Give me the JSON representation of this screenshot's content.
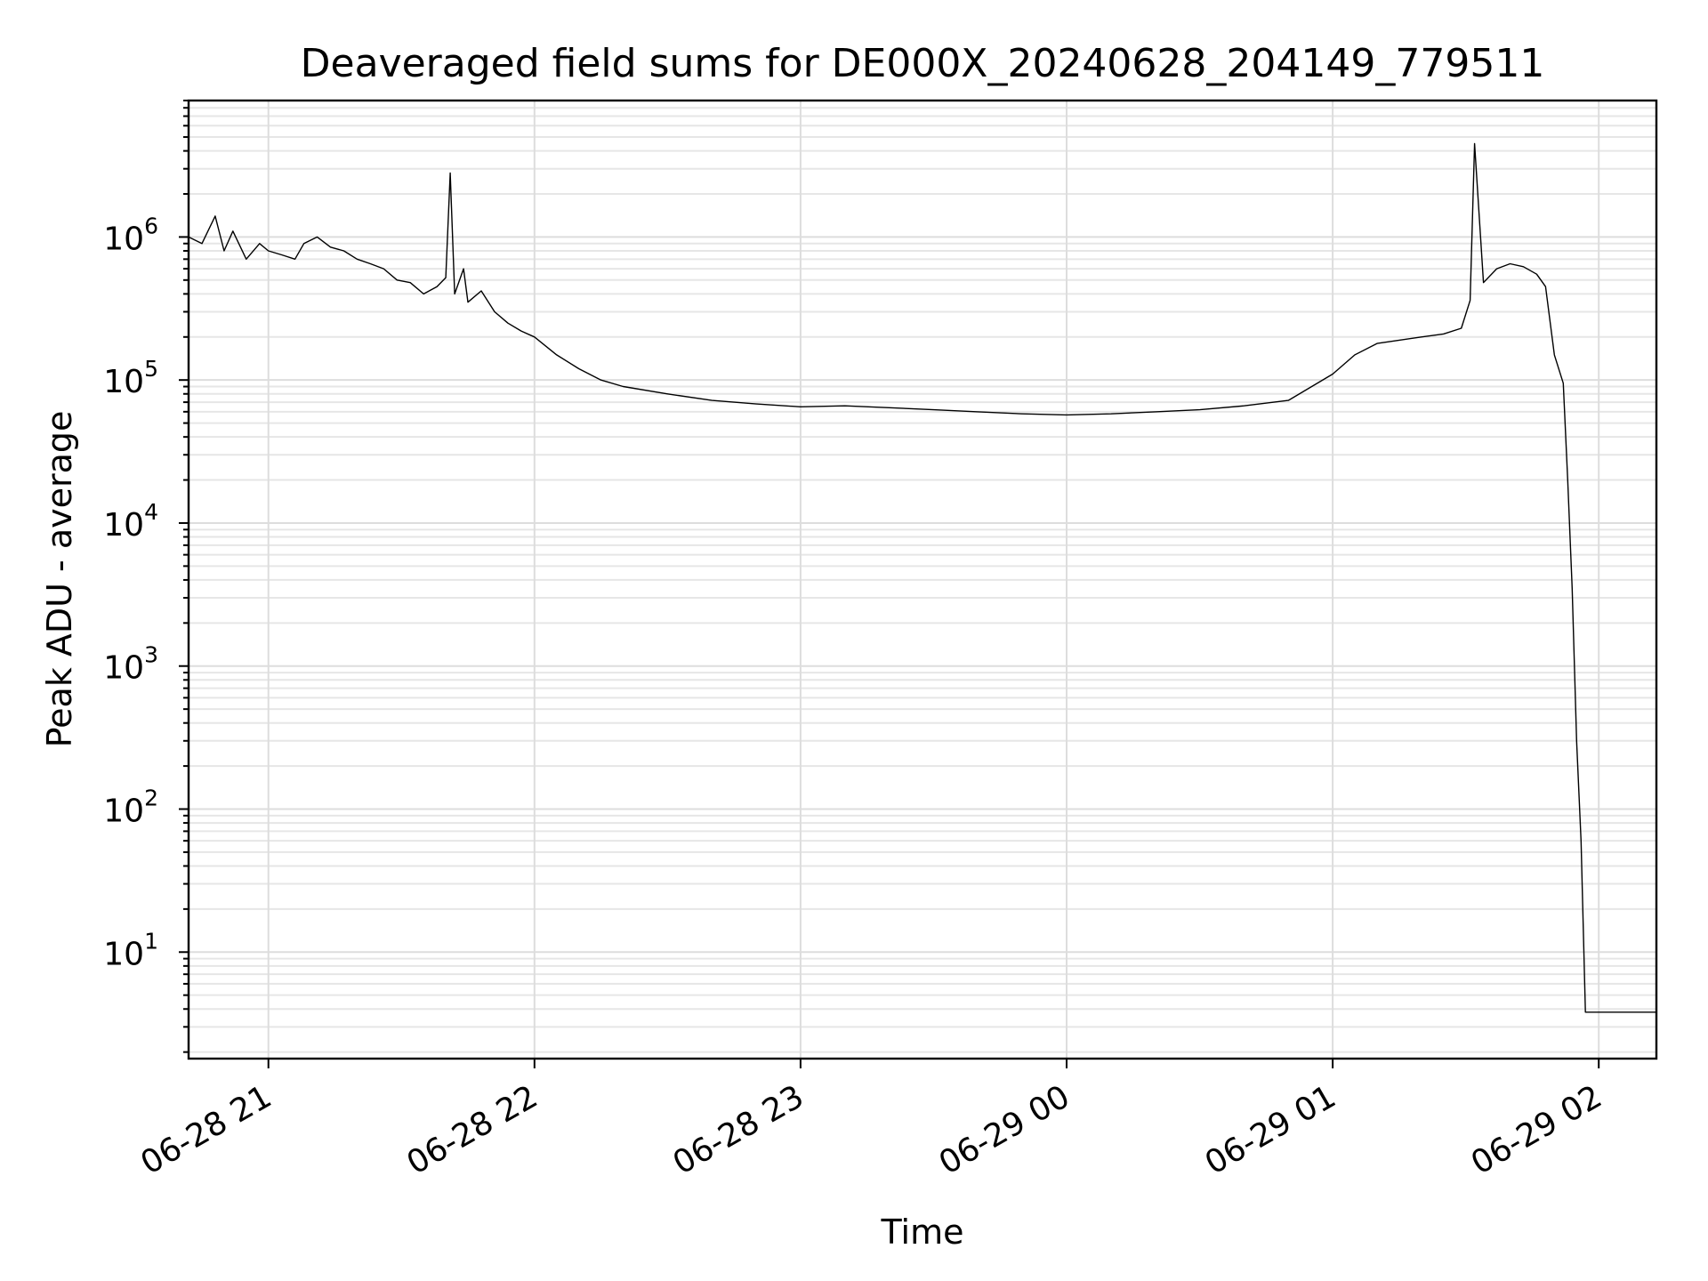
{
  "chart_data": {
    "type": "line",
    "title": "Deaveraged field sums for DE000X_20240628_204149_779511",
    "xlabel": "Time",
    "ylabel": "Peak ADU - average",
    "y_scale": "log",
    "ylim": [
      1.8,
      9000000
    ],
    "xlim": [
      "2024-06-28 20:42",
      "2024-06-29 02:13"
    ],
    "grid": true,
    "legend": "none",
    "line_color": "#000000",
    "x_ticks": [
      {
        "value": "2024-06-28 21:00",
        "label": "06-28 21"
      },
      {
        "value": "2024-06-28 22:00",
        "label": "06-28 22"
      },
      {
        "value": "2024-06-28 23:00",
        "label": "06-28 23"
      },
      {
        "value": "2024-06-29 00:00",
        "label": "06-29 00"
      },
      {
        "value": "2024-06-29 01:00",
        "label": "06-29 01"
      },
      {
        "value": "2024-06-29 02:00",
        "label": "06-29 02"
      }
    ],
    "y_ticks": [
      {
        "value": 10,
        "base": "10",
        "exp": "1"
      },
      {
        "value": 100,
        "base": "10",
        "exp": "2"
      },
      {
        "value": 1000,
        "base": "10",
        "exp": "3"
      },
      {
        "value": 10000,
        "base": "10",
        "exp": "4"
      },
      {
        "value": 100000,
        "base": "10",
        "exp": "5"
      },
      {
        "value": 1000000,
        "base": "10",
        "exp": "6"
      }
    ],
    "series": [
      {
        "x": [
          "2024-06-28 20:42",
          "2024-06-28 20:45",
          "2024-06-28 20:48",
          "2024-06-28 20:50",
          "2024-06-28 20:52",
          "2024-06-28 20:55",
          "2024-06-28 20:58",
          "2024-06-28 21:00",
          "2024-06-28 21:03",
          "2024-06-28 21:06",
          "2024-06-28 21:08",
          "2024-06-28 21:11",
          "2024-06-28 21:14",
          "2024-06-28 21:17",
          "2024-06-28 21:20",
          "2024-06-28 21:23",
          "2024-06-28 21:26",
          "2024-06-28 21:29",
          "2024-06-28 21:32",
          "2024-06-28 21:35",
          "2024-06-28 21:38",
          "2024-06-28 21:40",
          "2024-06-28 21:41",
          "2024-06-28 21:42",
          "2024-06-28 21:44",
          "2024-06-28 21:45",
          "2024-06-28 21:48",
          "2024-06-28 21:51",
          "2024-06-28 21:54",
          "2024-06-28 21:57",
          "2024-06-28 22:00",
          "2024-06-28 22:05",
          "2024-06-28 22:10",
          "2024-06-28 22:15",
          "2024-06-28 22:20",
          "2024-06-28 22:30",
          "2024-06-28 22:40",
          "2024-06-28 22:50",
          "2024-06-28 23:00",
          "2024-06-28 23:10",
          "2024-06-28 23:20",
          "2024-06-28 23:30",
          "2024-06-28 23:40",
          "2024-06-28 23:50",
          "2024-06-29 00:00",
          "2024-06-29 00:10",
          "2024-06-29 00:20",
          "2024-06-29 00:30",
          "2024-06-29 00:40",
          "2024-06-29 00:50",
          "2024-06-29 01:00",
          "2024-06-29 01:05",
          "2024-06-29 01:10",
          "2024-06-29 01:15",
          "2024-06-29 01:20",
          "2024-06-29 01:25",
          "2024-06-29 01:29",
          "2024-06-29 01:31",
          "2024-06-29 01:32",
          "2024-06-29 01:34",
          "2024-06-29 01:37",
          "2024-06-29 01:40",
          "2024-06-29 01:43",
          "2024-06-29 01:46",
          "2024-06-29 01:48",
          "2024-06-29 01:50",
          "2024-06-29 01:52",
          "2024-06-29 01:53",
          "2024-06-29 01:54",
          "2024-06-29 01:55",
          "2024-06-29 01:56",
          "2024-06-29 01:57",
          "2024-06-29 02:13"
        ],
        "y": [
          1000000,
          900000,
          1400000,
          800000,
          1100000,
          700000,
          900000,
          800000,
          750000,
          700000,
          900000,
          1000000,
          850000,
          800000,
          700000,
          650000,
          600000,
          500000,
          480000,
          400000,
          450000,
          520000,
          2800000,
          400000,
          600000,
          350000,
          420000,
          300000,
          250000,
          220000,
          200000,
          150000,
          120000,
          100000,
          90000,
          80000,
          72000,
          68000,
          65000,
          66000,
          64000,
          62000,
          60000,
          58000,
          57000,
          58000,
          60000,
          62000,
          66000,
          72000,
          110000,
          150000,
          180000,
          190000,
          200000,
          210000,
          230000,
          360000,
          4500000,
          480000,
          600000,
          650000,
          620000,
          550000,
          450000,
          150000,
          95000,
          20000,
          3500,
          300,
          60,
          3.8,
          3.8
        ]
      }
    ]
  }
}
